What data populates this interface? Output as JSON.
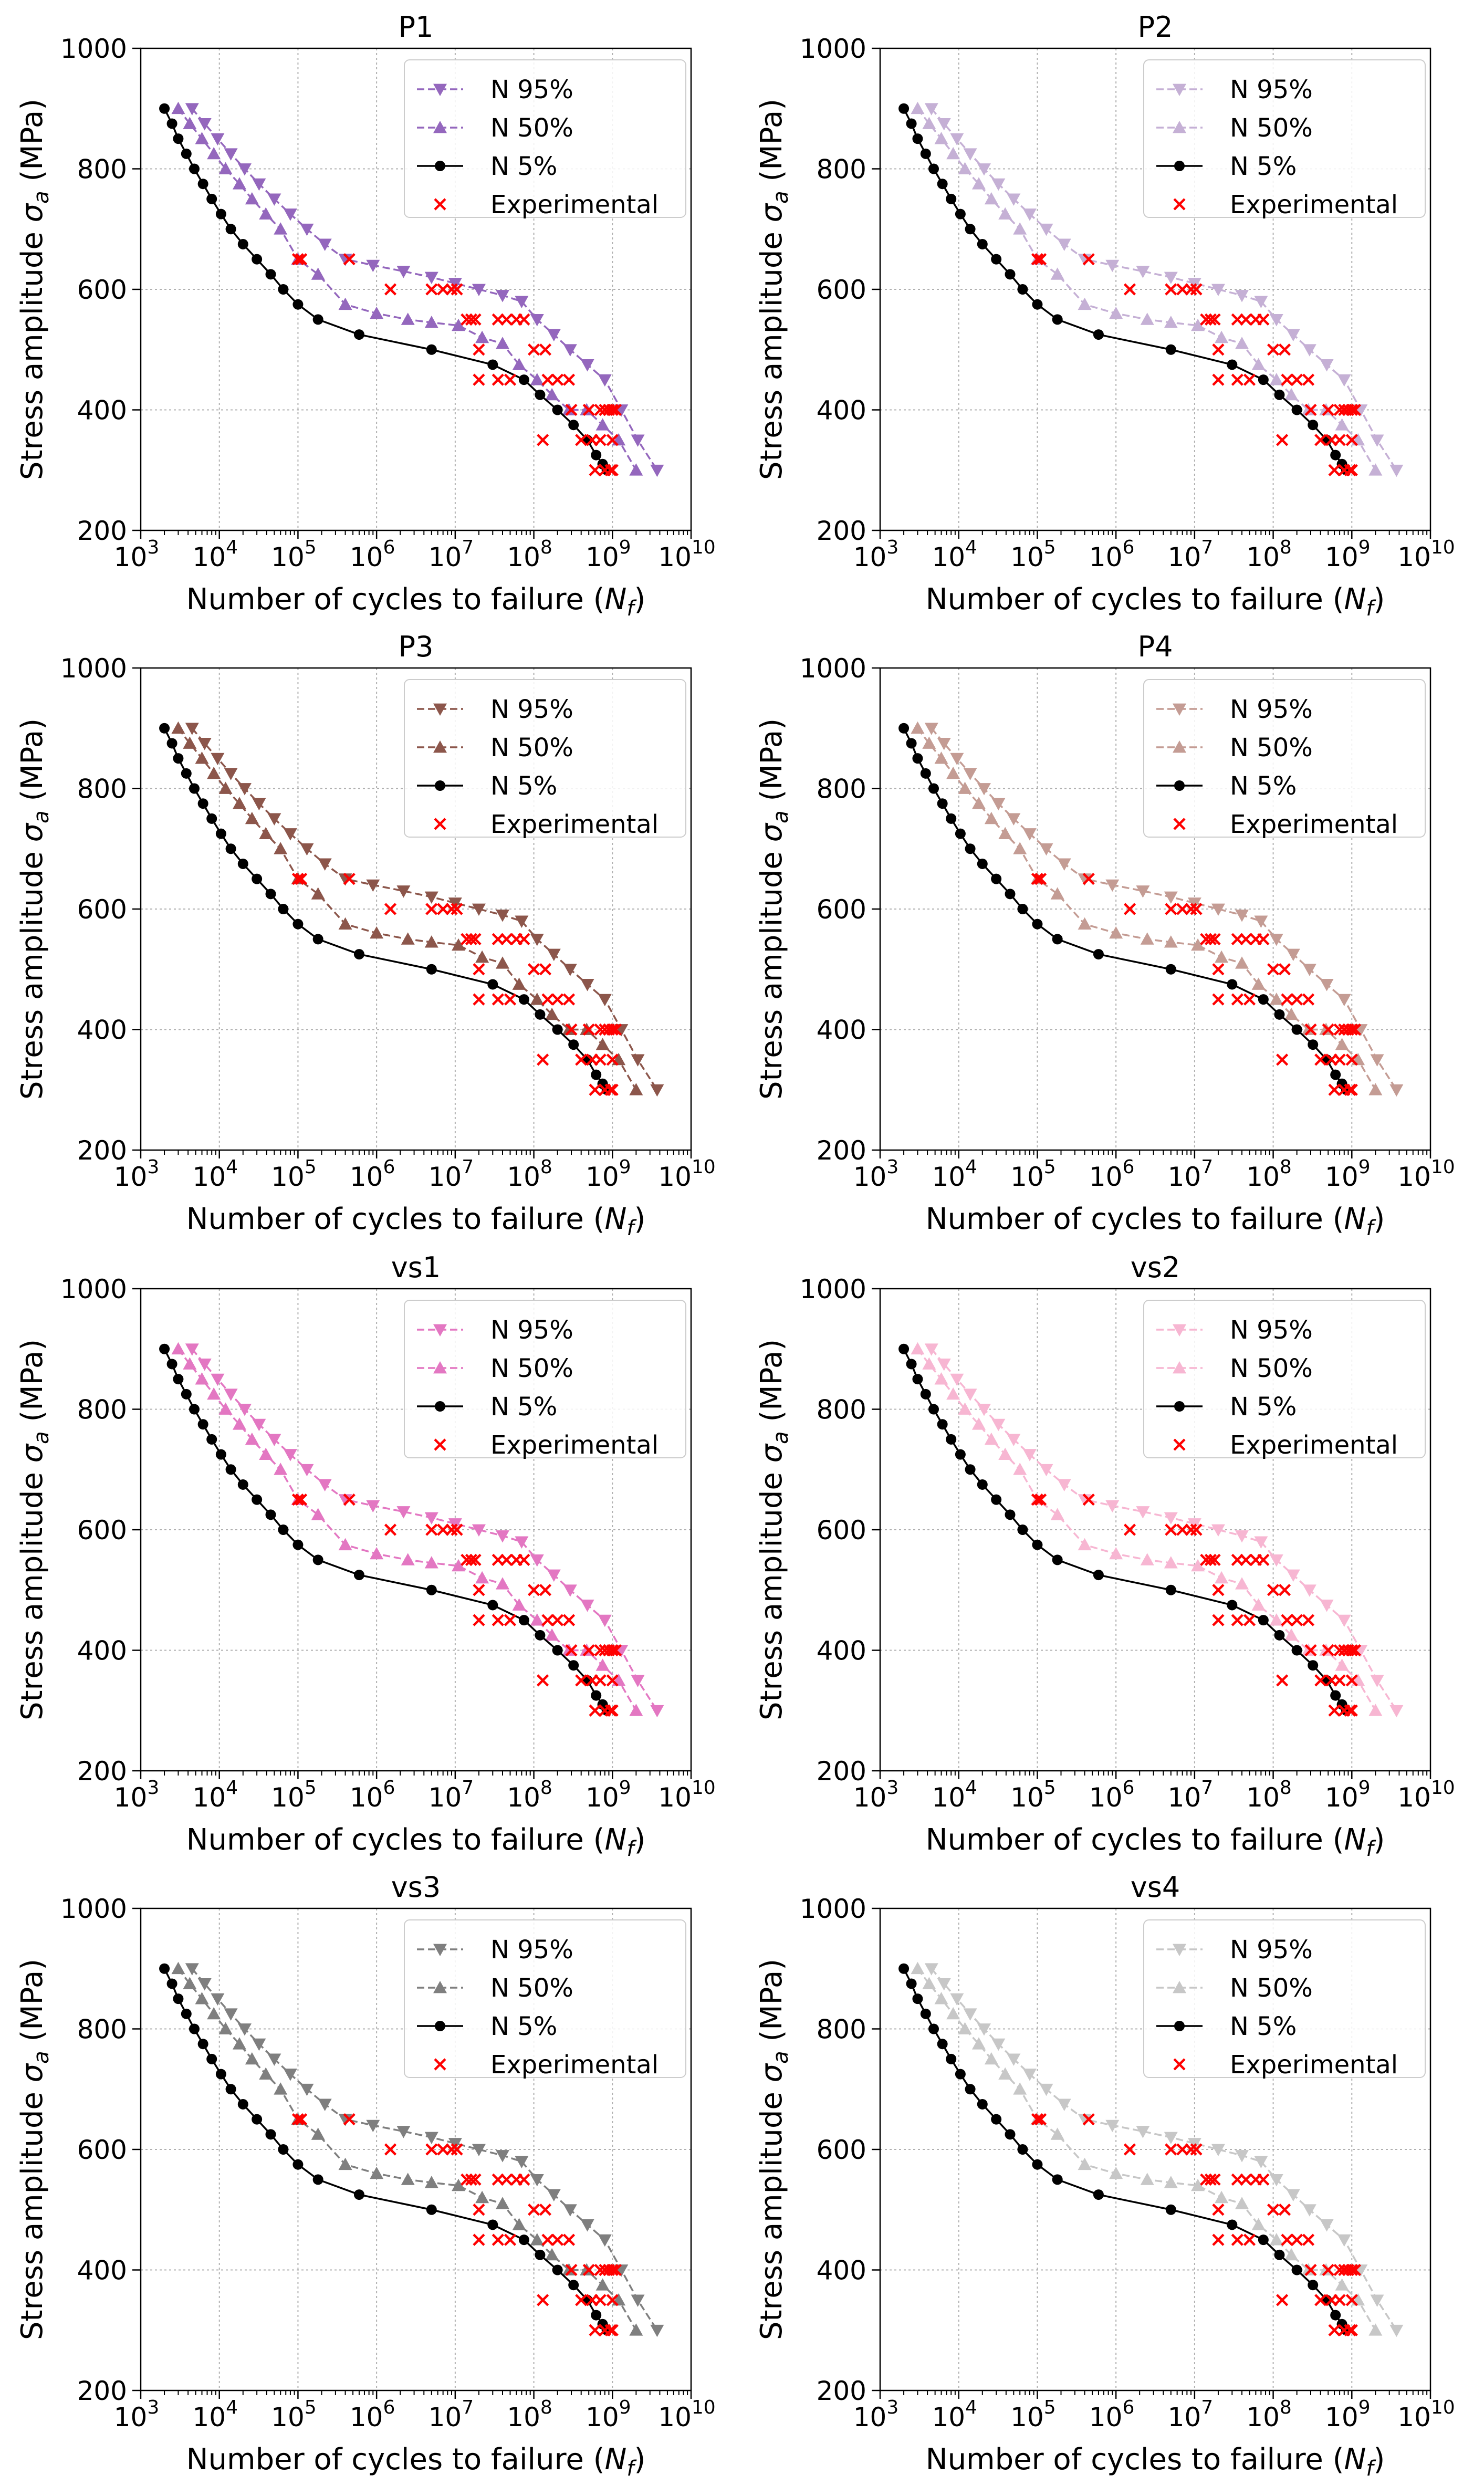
{
  "figure": {
    "panel_order": [
      "P1",
      "P2",
      "P3",
      "P4",
      "vs1",
      "vs2",
      "vs3",
      "vs4"
    ]
  },
  "chart_data": [
    {
      "type": "line",
      "title": "P1",
      "color": "#9467bd"
    },
    {
      "type": "line",
      "title": "P2",
      "color": "#c5b0d5"
    },
    {
      "type": "line",
      "title": "P3",
      "color": "#8c564b"
    },
    {
      "type": "line",
      "title": "P4",
      "color": "#c49c94"
    },
    {
      "type": "line",
      "title": "vs1",
      "color": "#e377c2"
    },
    {
      "type": "line",
      "title": "vs2",
      "color": "#f7b6d2"
    },
    {
      "type": "line",
      "title": "vs3",
      "color": "#7f7f7f"
    },
    {
      "type": "line",
      "title": "vs4",
      "color": "#c7c7c7"
    }
  ],
  "shared": {
    "xlabel": "Number of cycles to failure (",
    "xlabel_var": "N",
    "xlabel_sub": "f",
    "xlabel_close": ")",
    "ylabel": "Stress amplitude ",
    "ylabel_var": "σ",
    "ylabel_sub": "a",
    "ylabel_unit": " (MPa)",
    "xscale": "log",
    "xlim_exp": [
      3,
      10
    ],
    "xtick_exp": [
      3,
      4,
      5,
      6,
      7,
      8,
      9,
      10
    ],
    "ylim": [
      200,
      1000
    ],
    "yticks": [
      200,
      400,
      600,
      800,
      1000
    ],
    "grid": true,
    "legend_position": "upper right",
    "legend": [
      "N 95%",
      "N 50%",
      "N 5%",
      "Experimental"
    ],
    "series": [
      {
        "name": "N 95%",
        "marker": "triangle-down",
        "style": "dashed",
        "x": [
          4500.0,
          6500.0,
          9500.0,
          14000.0,
          21000.0,
          32000.0,
          50000.0,
          80000.0,
          130000.0,
          220000.0,
          400000.0,
          900000.0,
          2200000.0,
          5000000.0,
          10000000.0,
          20000000.0,
          40000000.0,
          70000000.0,
          110000000.0,
          180000000.0,
          290000000.0,
          480000000.0,
          800000000.0,
          1300000000.0,
          2100000000.0,
          3700000000.0
        ],
        "y": [
          900,
          875,
          850,
          825,
          800,
          775,
          750,
          725,
          700,
          675,
          650,
          640,
          630,
          620,
          610,
          600,
          590,
          580,
          550,
          525,
          500,
          475,
          450,
          400,
          350,
          300
        ]
      },
      {
        "name": "N 50%",
        "marker": "triangle-up",
        "style": "dashed",
        "x": [
          3000.0,
          4200.0,
          6000.0,
          8500.0,
          12000.0,
          18000.0,
          26000.0,
          39000.0,
          60000.0,
          100000.0,
          180000.0,
          400000.0,
          1000000.0,
          2500000.0,
          5000000.0,
          11000000.0,
          22000000.0,
          40000000.0,
          65000000.0,
          110000000.0,
          170000000.0,
          280000000.0,
          470000000.0,
          750000000.0,
          1200000000.0,
          2000000000.0
        ],
        "y": [
          900,
          875,
          850,
          825,
          800,
          775,
          750,
          725,
          700,
          650,
          625,
          575,
          560,
          550,
          545,
          540,
          520,
          510,
          475,
          450,
          425,
          400,
          400,
          375,
          350,
          300
        ]
      },
      {
        "name": "N 5%",
        "marker": "circle",
        "style": "solid",
        "x": [
          2000.0,
          2500.0,
          3000.0,
          3800.0,
          4800.0,
          6200.0,
          8000.0,
          10500.0,
          14000.0,
          20000.0,
          30000.0,
          45000.0,
          65000.0,
          100000.0,
          180000.0,
          600000.0,
          5000000.0,
          30000000.0,
          75000000.0,
          120000000.0,
          200000000.0,
          320000000.0,
          480000000.0,
          620000000.0,
          750000000.0,
          850000000.0
        ],
        "y": [
          900,
          875,
          850,
          825,
          800,
          775,
          750,
          725,
          700,
          675,
          650,
          625,
          600,
          575,
          550,
          525,
          500,
          475,
          450,
          425,
          400,
          375,
          350,
          325,
          310,
          300
        ]
      },
      {
        "name": "Experimental",
        "marker": "x",
        "style": "none",
        "color": "#ff0000",
        "x": [
          100000.0,
          110000.0,
          450000.0,
          1500000.0,
          5000000.0,
          7000000.0,
          9000000.0,
          10500000.0,
          14000000.0,
          16000000.0,
          18000000.0,
          20000000.0,
          35000000.0,
          45000000.0,
          60000000.0,
          75000000.0,
          20000000.0,
          35000000.0,
          100000000.0,
          140000000.0,
          280000000.0,
          50000000.0,
          150000000.0,
          200000000.0,
          300000000.0,
          500000000.0,
          700000000.0,
          800000000.0,
          900000000.0,
          1000000000.0,
          1100000000.0,
          400000000.0,
          550000000.0,
          700000000.0,
          1000000000.0,
          130000000.0,
          800000000.0,
          1000000000.0,
          600000000.0,
          950000000.0
        ],
        "y": [
          650,
          650,
          650,
          600,
          600,
          600,
          600,
          600,
          550,
          550,
          550,
          500,
          550,
          550,
          550,
          550,
          450,
          450,
          500,
          500,
          450,
          450,
          450,
          450,
          400,
          400,
          400,
          400,
          400,
          400,
          400,
          350,
          350,
          350,
          350,
          350,
          300,
          300,
          300,
          300
        ]
      }
    ]
  }
}
